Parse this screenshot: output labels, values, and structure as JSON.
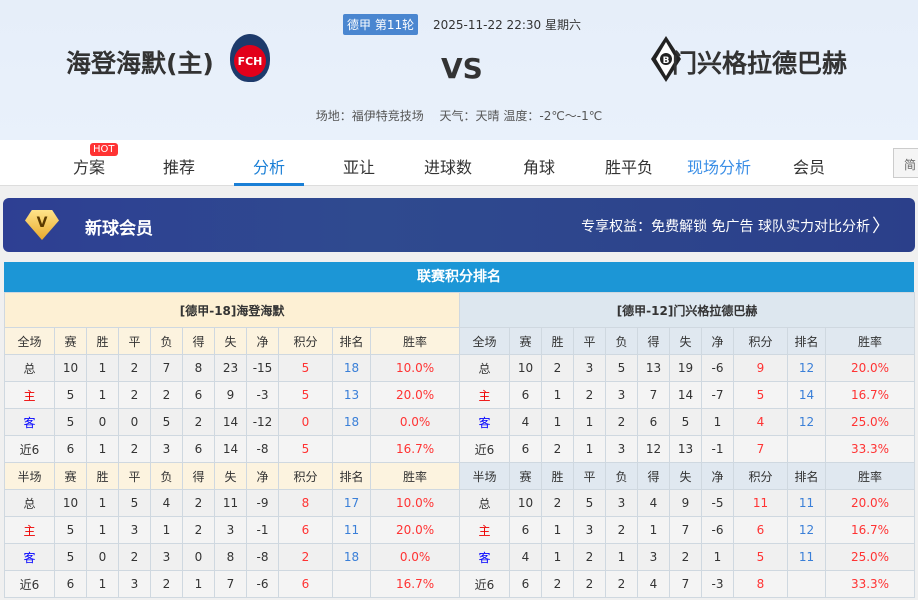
{
  "match": {
    "league_round": "德甲 第11轮",
    "datetime": "2025-11-22 22:30 星期六",
    "home_team": "海登海默(主)",
    "away_team": "门兴格拉德巴赫",
    "vs": "VS",
    "home_logo_text": "FCH",
    "venue_weather": "场地：福伊特竞技场　 天气：天晴 温度：-2℃～-1℃"
  },
  "nav": {
    "items": [
      "方案",
      "推荐",
      "分析",
      "亚让",
      "进球数",
      "角球",
      "胜平负",
      "现场分析",
      "会员"
    ],
    "active": "分析",
    "hot_badge": "HOT",
    "lang_button": "简"
  },
  "vip": {
    "title": "新球会员",
    "benefits": "专享权益：免费解锁 免广告 球队实力对比分析",
    "icon": "diamond-v-icon"
  },
  "standings": {
    "title": "联赛积分排名",
    "columns_full": [
      "全场",
      "赛",
      "胜",
      "平",
      "负",
      "得",
      "失",
      "净",
      "积分",
      "排名",
      "胜率"
    ],
    "columns_half": [
      "半场",
      "赛",
      "胜",
      "平",
      "负",
      "得",
      "失",
      "净",
      "积分",
      "排名",
      "胜率"
    ],
    "home": {
      "team": "[德甲-18]海登海默",
      "full": [
        [
          "总",
          "10",
          "1",
          "2",
          "7",
          "8",
          "23",
          "-15",
          "5",
          "18",
          "10.0%"
        ],
        [
          "主",
          "5",
          "1",
          "2",
          "2",
          "6",
          "9",
          "-3",
          "5",
          "13",
          "20.0%"
        ],
        [
          "客",
          "5",
          "0",
          "0",
          "5",
          "2",
          "14",
          "-12",
          "0",
          "18",
          "0.0%"
        ],
        [
          "近6",
          "6",
          "1",
          "2",
          "3",
          "6",
          "14",
          "-8",
          "5",
          "",
          "16.7%"
        ]
      ],
      "half": [
        [
          "总",
          "10",
          "1",
          "5",
          "4",
          "2",
          "11",
          "-9",
          "8",
          "17",
          "10.0%"
        ],
        [
          "主",
          "5",
          "1",
          "3",
          "1",
          "2",
          "3",
          "-1",
          "6",
          "11",
          "20.0%"
        ],
        [
          "客",
          "5",
          "0",
          "2",
          "3",
          "0",
          "8",
          "-8",
          "2",
          "18",
          "0.0%"
        ],
        [
          "近6",
          "6",
          "1",
          "3",
          "2",
          "1",
          "7",
          "-6",
          "6",
          "",
          "16.7%"
        ]
      ]
    },
    "away": {
      "team": "[德甲-12]门兴格拉德巴赫",
      "full": [
        [
          "总",
          "10",
          "2",
          "3",
          "5",
          "13",
          "19",
          "-6",
          "9",
          "12",
          "20.0%"
        ],
        [
          "主",
          "6",
          "1",
          "2",
          "3",
          "7",
          "14",
          "-7",
          "5",
          "14",
          "16.7%"
        ],
        [
          "客",
          "4",
          "1",
          "1",
          "2",
          "6",
          "5",
          "1",
          "4",
          "12",
          "25.0%"
        ],
        [
          "近6",
          "6",
          "2",
          "1",
          "3",
          "12",
          "13",
          "-1",
          "7",
          "",
          "33.3%"
        ]
      ],
      "half": [
        [
          "总",
          "10",
          "2",
          "5",
          "3",
          "4",
          "9",
          "-5",
          "11",
          "11",
          "20.0%"
        ],
        [
          "主",
          "6",
          "1",
          "3",
          "2",
          "1",
          "7",
          "-6",
          "6",
          "12",
          "16.7%"
        ],
        [
          "客",
          "4",
          "1",
          "2",
          "1",
          "3",
          "2",
          "1",
          "5",
          "11",
          "25.0%"
        ],
        [
          "近6",
          "6",
          "2",
          "2",
          "2",
          "4",
          "7",
          "-3",
          "8",
          "",
          "33.3%"
        ]
      ]
    }
  }
}
